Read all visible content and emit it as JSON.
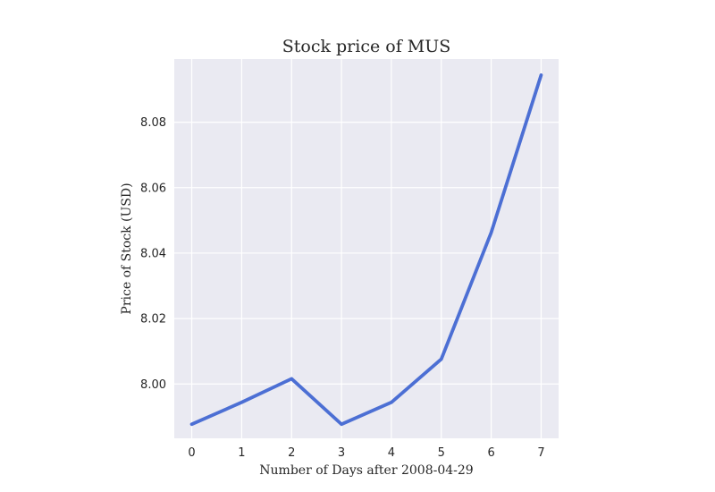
{
  "chart_data": {
    "type": "line",
    "title": "Stock price of MUS",
    "xlabel": "Number of Days after 2008-04-29",
    "ylabel": "Price of Stock (USD)",
    "x": [
      0,
      1,
      2,
      3,
      4,
      5,
      6,
      7
    ],
    "series": [
      {
        "values": [
          7.9877,
          7.9944,
          8.0016,
          7.9877,
          7.9944,
          8.0076,
          8.0463,
          8.0944
        ],
        "color": "#4c6fd4"
      }
    ],
    "xticks": [
      0,
      1,
      2,
      3,
      4,
      5,
      6,
      7
    ],
    "yticks": [
      8.0,
      8.02,
      8.04,
      8.06,
      8.08
    ],
    "ytick_labels": [
      "8.00",
      "8.02",
      "8.04",
      "8.06",
      "8.08"
    ],
    "xlim": [
      -0.35,
      7.35
    ],
    "ylim": [
      7.9834,
      8.0993
    ],
    "grid": true,
    "background_color": "#eaeaf2",
    "grid_color": "#ffffff"
  }
}
